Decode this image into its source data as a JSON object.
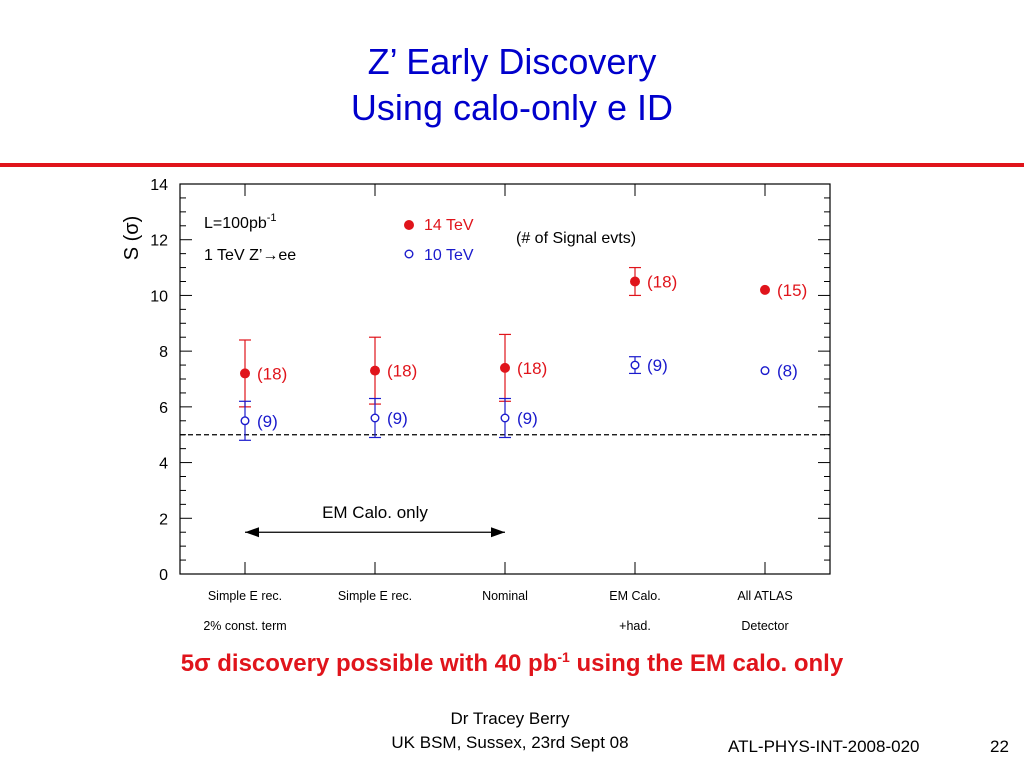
{
  "slide": {
    "title_line_1": "Z’ Early Discovery",
    "title_line_2": "Using calo-only e ID",
    "accent_color": "#e0141b",
    "title_color": "#0000cc",
    "conclusion_prefix": "5",
    "conclusion_sigma": "σ",
    "conclusion_middle": " discovery possible with 40 pb",
    "conclusion_sup": "-1",
    "conclusion_suffix": " using the EM calo. only",
    "footer_author": "Dr Tracey Berry",
    "footer_event": "UK BSM, Sussex, 23rd Sept 08",
    "footer_report": "ATL-PHYS-INT-2008-020",
    "page_number": "22"
  },
  "chart_data": {
    "type": "scatter",
    "ylabel_text": "S (",
    "ylabel_sigma": "σ",
    "ylabel_close": ")",
    "ylim": [
      0,
      14
    ],
    "yticks": [
      "0",
      "2",
      "4",
      "6",
      "8",
      "10",
      "12",
      "14"
    ],
    "x_positions": [
      1,
      2,
      3,
      4,
      5
    ],
    "xlim": [
      0.5,
      5.5
    ],
    "categories": [
      [
        "Simple E rec.",
        "2% const. term"
      ],
      [
        "Simple E rec.",
        ""
      ],
      [
        "Nominal",
        ""
      ],
      [
        "EM Calo.",
        "+had."
      ],
      [
        "All ATLAS",
        "Detector"
      ]
    ],
    "series": [
      {
        "name": "14 TeV",
        "color": "#e0141b",
        "marker": "filled-circle",
        "values": [
          7.2,
          7.3,
          7.4,
          10.5,
          10.2
        ],
        "err_low": [
          6.0,
          6.1,
          6.2,
          10.0,
          null
        ],
        "err_high": [
          8.4,
          8.5,
          8.6,
          11.0,
          null
        ],
        "labels": [
          "(18)",
          "(18)",
          "(18)",
          "(18)",
          "(15)"
        ]
      },
      {
        "name": "10 TeV",
        "color": "#1a1acc",
        "marker": "open-circle",
        "values": [
          5.5,
          5.6,
          5.6,
          7.5,
          7.3
        ],
        "err_low": [
          4.8,
          4.9,
          4.9,
          7.2,
          null
        ],
        "err_high": [
          6.2,
          6.3,
          6.3,
          7.8,
          null
        ],
        "labels": [
          "(9)",
          "(9)",
          "(9)",
          "(9)",
          "(8)"
        ]
      }
    ],
    "threshold": 5,
    "annotations": {
      "lumi_text": "L=100pb",
      "lumi_sup": "-1",
      "process_text": "1 TeV Z’",
      "process_arrow": "→",
      "process_suffix": "ee",
      "signal_note": "(# of Signal evts)",
      "range_label": "EM Calo. only",
      "range_x": [
        1,
        3
      ],
      "range_y": 1.5
    },
    "legend_position": "top-center",
    "grid": false
  }
}
